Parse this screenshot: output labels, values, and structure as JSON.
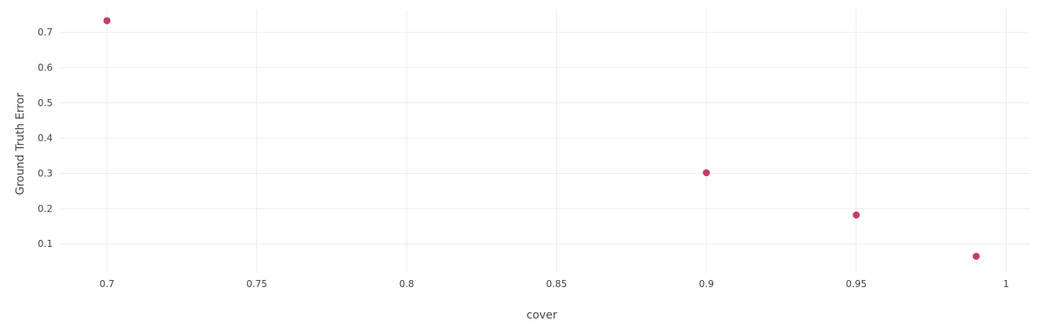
{
  "chart_data": {
    "type": "scatter",
    "title": "",
    "xlabel": "cover",
    "ylabel": "Ground Truth Error",
    "xlim": [
      0.684,
      1.008
    ],
    "ylim": [
      0.02,
      0.765
    ],
    "x_ticks": [
      0.7,
      0.75,
      0.8,
      0.85,
      0.9,
      0.95,
      1
    ],
    "x_tick_labels": [
      "0.7",
      "0.75",
      "0.8",
      "0.85",
      "0.9",
      "0.95",
      "1"
    ],
    "y_ticks": [
      0.1,
      0.2,
      0.3,
      0.4,
      0.5,
      0.6,
      0.7
    ],
    "y_tick_labels": [
      "0.1",
      "0.2",
      "0.3",
      "0.4",
      "0.5",
      "0.6",
      "0.7"
    ],
    "grid": true,
    "legend": "none",
    "marker_color": "#c43c6e",
    "series": [
      {
        "name": "Ground Truth Error",
        "points": [
          {
            "x": 0.7,
            "y": 0.733
          },
          {
            "x": 0.9,
            "y": 0.302
          },
          {
            "x": 0.95,
            "y": 0.182
          },
          {
            "x": 0.99,
            "y": 0.065
          }
        ]
      }
    ]
  }
}
